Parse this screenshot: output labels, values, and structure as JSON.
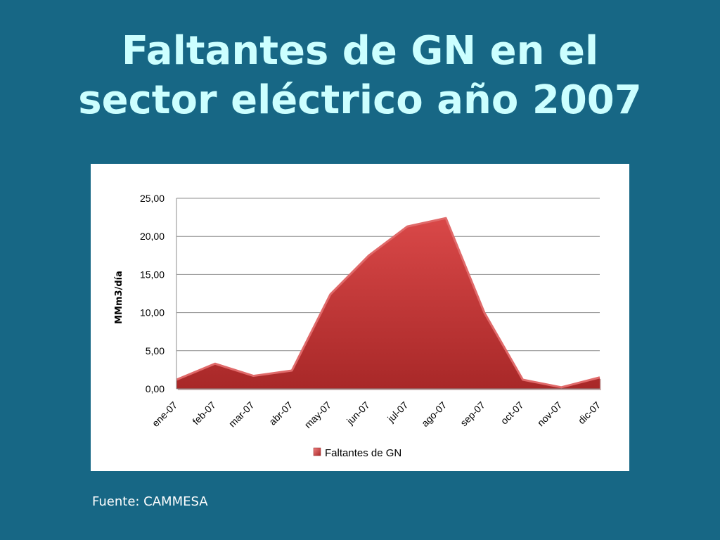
{
  "slide": {
    "title_line1": "Faltantes de GN en el",
    "title_line2": "sector eléctrico año 2007",
    "source": "Fuente: CAMMESA"
  },
  "colors": {
    "background": "#176785",
    "title": "#ccffff",
    "area_fill": "#c83a3a",
    "area_edge": "#e06a6a"
  },
  "chart_data": {
    "type": "area",
    "categories": [
      "ene-07",
      "feb-07",
      "mar-07",
      "abr-07",
      "may-07",
      "jun-07",
      "jul-07",
      "ago-07",
      "sep-07",
      "oct-07",
      "nov-07",
      "dic-07"
    ],
    "series": [
      {
        "name": "Faltantes de GN",
        "values": [
          1.2,
          3.3,
          1.7,
          2.4,
          12.4,
          17.5,
          21.3,
          22.4,
          10.0,
          1.2,
          0.2,
          1.5
        ]
      }
    ],
    "ylabel": "MMm3/día",
    "yticks": [
      "0,00",
      "5,00",
      "10,00",
      "15,00",
      "20,00",
      "25,00"
    ],
    "ylim": [
      0,
      25
    ],
    "grid": true,
    "legend": "bottom"
  }
}
